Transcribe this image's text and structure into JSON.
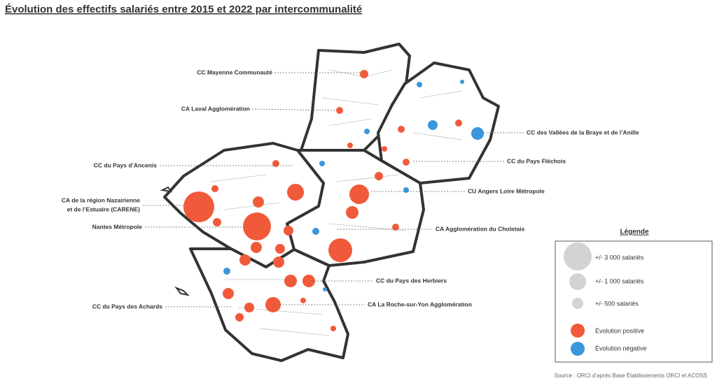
{
  "title": "Évolution des effectifs salariés entre 2015 et 2022 par intercommunalité",
  "labels": [
    "CC Mayenne Communauté",
    "CA Laval Agglomération",
    "CC des Vallées de la Braye et de l’Anille",
    "CC du Pays Fléchois",
    "CC du Pays d’Ancenis",
    [
      "CA de la région Nazairienne",
      "et de l’Estuaire (CARENE)"
    ],
    "CU Angers Loire Métropole",
    "Nantes Métropole",
    "CA Agglomération du Choletais",
    "CC du Pays des Herbiers",
    "CC du Pays des Achards",
    "CA La  Roche-sur-Yon Agglomération"
  ],
  "legend": {
    "title": "Légende",
    "sizes": [
      "+/- 3 000 salariés",
      "+/- 1 000 salariés",
      "+/- 500 salariés"
    ],
    "colors": [
      "Évolution positive",
      "Évolution négative"
    ]
  },
  "source": "Source : ORCI d’après Base Établissements ORCI et ACOSS"
}
